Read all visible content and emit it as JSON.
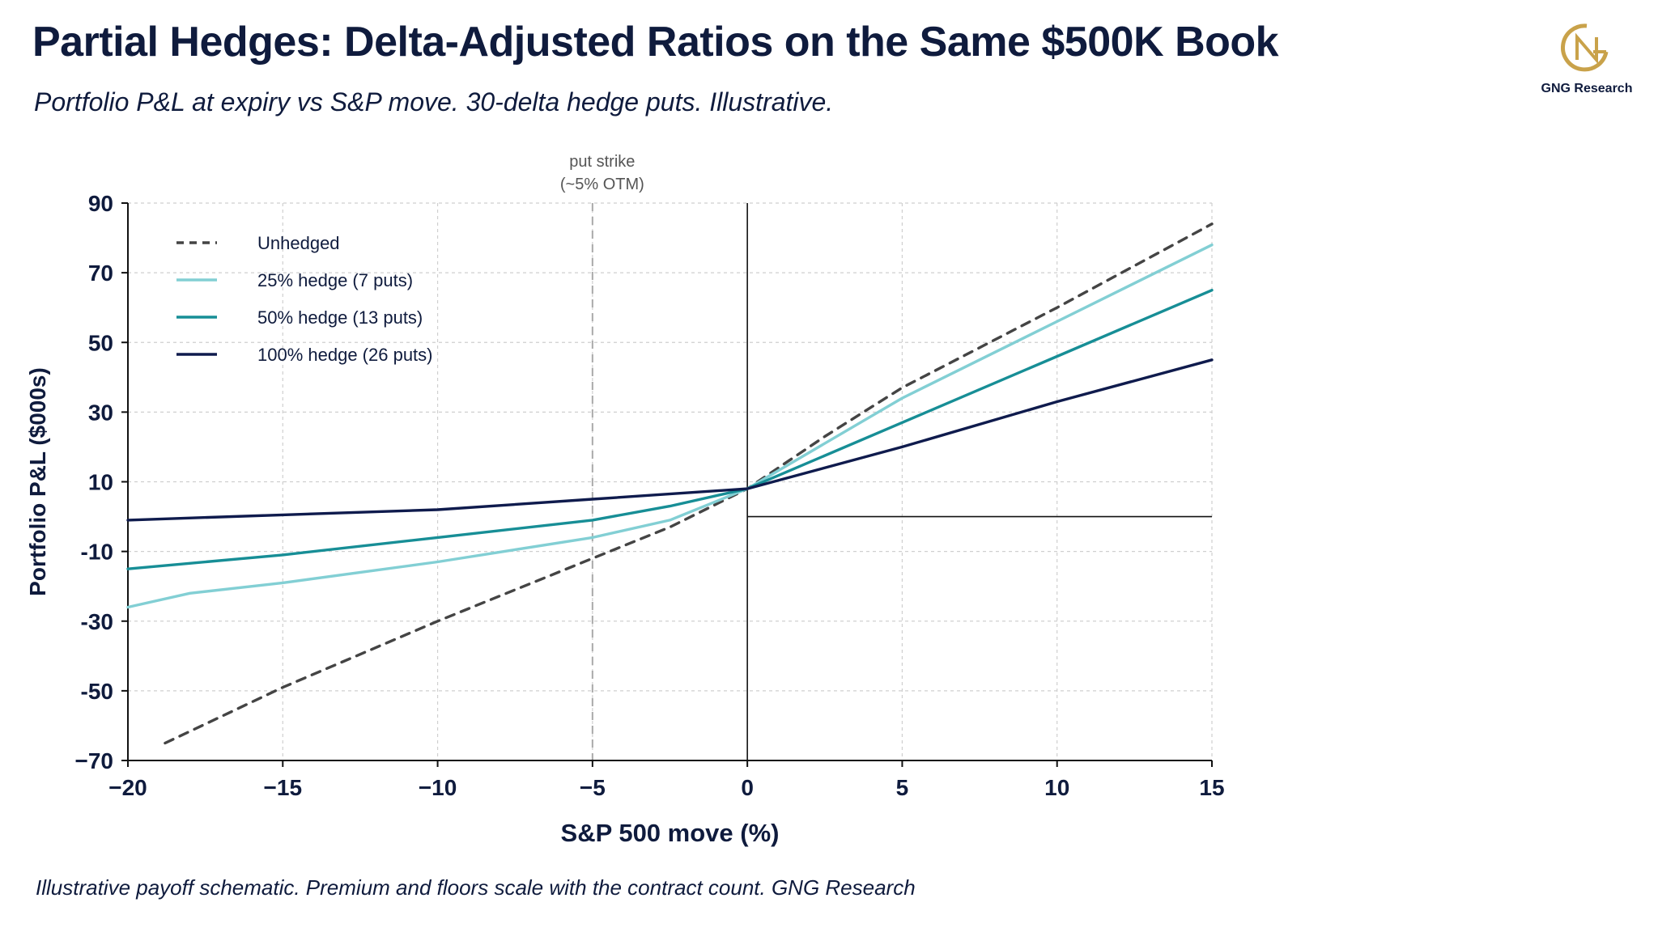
{
  "header": {
    "title": "Partial Hedges: Delta-Adjusted Ratios on the Same $500K Book",
    "subtitle": "Portfolio P&L at expiry vs S&P move. 30-delta hedge puts. Illustrative."
  },
  "logo": {
    "text": "GNG Research",
    "icon": "gng-monogram-icon",
    "color": "#c9a24a"
  },
  "footer": {
    "note": "Illustrative payoff schematic. Premium and floors scale with the contract count.  GNG Research"
  },
  "colors": {
    "unhedged": "#444444",
    "hedge25": "#82cfd4",
    "hedge50": "#178e96",
    "hedge100": "#0f1b4d",
    "text": "#0f1b3d"
  },
  "chart_data": {
    "type": "line",
    "title": "Partial Hedges: Delta-Adjusted Ratios on the Same $500K Book",
    "xlabel": "S&P 500 move (%)",
    "ylabel": "Portfolio P&L ($000s)",
    "xlim": [
      -20,
      15
    ],
    "ylim": [
      -70,
      90
    ],
    "xticks": [
      -20,
      -15,
      -10,
      -5,
      0,
      5,
      10,
      15
    ],
    "yticks": [
      -70,
      -50,
      -30,
      -10,
      10,
      30,
      50,
      70,
      90
    ],
    "xtick_labels": [
      "−20",
      "−15",
      "−10",
      "−5",
      "0",
      "5",
      "10",
      "15"
    ],
    "ytick_labels": [
      "−70",
      "-50",
      "-30",
      "-10",
      "10",
      "30",
      "50",
      "70",
      "90"
    ],
    "grid": true,
    "legend_position": "top-left",
    "annotation": {
      "x": -5,
      "lines": [
        "put strike",
        "(~5% OTM)"
      ]
    },
    "series": [
      {
        "name": "Unhedged",
        "color": "#444444",
        "dash": true,
        "x": [
          -18.8,
          -15,
          -10,
          -5,
          -2.5,
          0,
          2.5,
          5,
          10,
          15
        ],
        "y": [
          -65,
          -49,
          -30,
          -12,
          -3,
          8,
          23,
          37,
          60,
          84
        ]
      },
      {
        "name": "25% hedge (7 puts)",
        "color": "#82cfd4",
        "dash": false,
        "x": [
          -20,
          -18,
          -15,
          -10,
          -5,
          -2.5,
          0,
          5,
          10,
          15
        ],
        "y": [
          -26,
          -22,
          -19,
          -13,
          -6,
          -1,
          8,
          34,
          56,
          78
        ]
      },
      {
        "name": "50% hedge (13 puts)",
        "color": "#178e96",
        "dash": false,
        "x": [
          -20,
          -15,
          -10,
          -5,
          -2.5,
          0,
          5,
          10,
          15
        ],
        "y": [
          -15,
          -11,
          -6,
          -1,
          3,
          8,
          27,
          46,
          65
        ]
      },
      {
        "name": "100% hedge (26 puts)",
        "color": "#0f1b4d",
        "dash": false,
        "x": [
          -20,
          -15,
          -10,
          -5,
          0,
          5,
          10,
          15
        ],
        "y": [
          -1,
          0.5,
          2,
          5,
          8,
          20,
          33,
          45
        ]
      }
    ]
  }
}
